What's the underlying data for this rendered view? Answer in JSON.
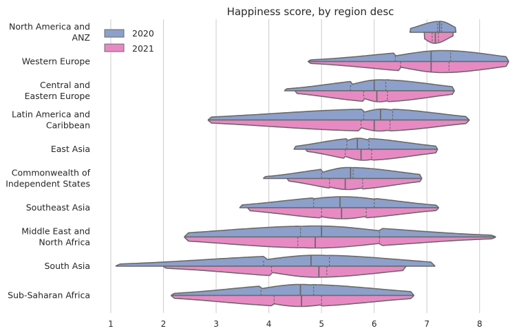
{
  "chart_data": {
    "type": "violin",
    "title": "Happiness score, by region desc",
    "xlabel": "",
    "ylabel": "",
    "xlim": [
      0.7,
      8.8
    ],
    "xticks": [
      1,
      2,
      3,
      4,
      5,
      6,
      7,
      8
    ],
    "grid": "vertical",
    "legend": {
      "placement": "top-left",
      "entries": [
        {
          "name": "2020",
          "color": "#8da0cb"
        },
        {
          "name": "2021",
          "color": "#e78ac3"
        }
      ]
    },
    "categories": [
      {
        "label": [
          "North America and",
          "ANZ"
        ],
        "y2020": {
          "min": 6.68,
          "max": 7.55,
          "q1": 7.2,
          "median": 7.24,
          "q3": 7.28,
          "mode": 7.25
        },
        "y2021": {
          "min": 6.95,
          "max": 7.5,
          "q1": 7.1,
          "median": 7.16,
          "q3": 7.22,
          "mode": 7.15
        }
      },
      {
        "label": [
          "Western Europe"
        ],
        "y2020": {
          "min": 4.75,
          "max": 8.55,
          "q1": 6.4,
          "median": 7.08,
          "q3": 7.45,
          "mode": 7.3
        },
        "y2021": {
          "min": 4.75,
          "max": 8.55,
          "q1": 6.5,
          "median": 7.08,
          "q3": 7.42,
          "mode": 7.3
        }
      },
      {
        "label": [
          "Central and",
          "Eastern Europe"
        ],
        "y2020": {
          "min": 4.3,
          "max": 7.52,
          "q1": 5.55,
          "median": 6.0,
          "q3": 6.22,
          "mode": 6.1
        },
        "y2021": {
          "min": 4.5,
          "max": 7.52,
          "q1": 5.8,
          "median": 6.05,
          "q3": 6.25,
          "mode": 6.1
        }
      },
      {
        "label": [
          "Latin America and",
          "Caribbean"
        ],
        "y2020": {
          "min": 2.85,
          "max": 7.8,
          "q1": 5.8,
          "median": 6.12,
          "q3": 6.35,
          "mode": 6.15
        },
        "y2021": {
          "min": 2.85,
          "max": 7.8,
          "q1": 5.75,
          "median": 6.0,
          "q3": 6.3,
          "mode": 6.1
        }
      },
      {
        "label": [
          "East Asia"
        ],
        "y2020": {
          "min": 4.48,
          "max": 7.2,
          "q1": 5.48,
          "median": 5.68,
          "q3": 5.9,
          "mode": 5.7
        },
        "y2021": {
          "min": 4.7,
          "max": 7.2,
          "q1": 5.45,
          "median": 5.75,
          "q3": 5.95,
          "mode": 5.8
        }
      },
      {
        "label": [
          "Commonwealth of",
          "Independent States"
        ],
        "y2020": {
          "min": 3.9,
          "max": 6.9,
          "q1": 5.0,
          "median": 5.55,
          "q3": 5.6,
          "mode": 5.5
        },
        "y2021": {
          "min": 4.35,
          "max": 6.9,
          "q1": 5.15,
          "median": 5.45,
          "q3": 5.78,
          "mode": 5.5
        }
      },
      {
        "label": [
          "Southeast Asia"
        ],
        "y2020": {
          "min": 3.45,
          "max": 7.22,
          "q1": 4.85,
          "median": 5.35,
          "q3": 6.0,
          "mode": 5.4
        },
        "y2021": {
          "min": 3.6,
          "max": 7.22,
          "q1": 5.0,
          "median": 5.38,
          "q3": 5.85,
          "mode": 5.4
        }
      },
      {
        "label": [
          "Middle East and",
          "North Africa"
        ],
        "y2020": {
          "min": 2.4,
          "max": 8.3,
          "q1": 4.6,
          "median": 5.0,
          "q3": 6.1,
          "mode": 4.9
        },
        "y2021": {
          "min": 2.4,
          "max": 8.3,
          "q1": 4.55,
          "median": 4.88,
          "q3": 6.1,
          "mode": 4.9
        }
      },
      {
        "label": [
          "South Asia"
        ],
        "y2020": {
          "min": 1.1,
          "max": 7.15,
          "q1": 3.9,
          "median": 4.8,
          "q3": 5.15,
          "mode": 4.9
        },
        "y2021": {
          "min": 2.0,
          "max": 6.6,
          "q1": 4.05,
          "median": 4.95,
          "q3": 5.1,
          "mode": 4.9
        }
      },
      {
        "label": [
          "Sub-Saharan Africa"
        ],
        "y2020": {
          "min": 2.15,
          "max": 6.75,
          "q1": 3.85,
          "median": 4.6,
          "q3": 4.85,
          "mode": 4.6
        },
        "y2021": {
          "min": 2.15,
          "max": 6.75,
          "q1": 4.1,
          "median": 4.62,
          "q3": 5.0,
          "mode": 4.6
        }
      }
    ],
    "edge_color": "#696969"
  }
}
